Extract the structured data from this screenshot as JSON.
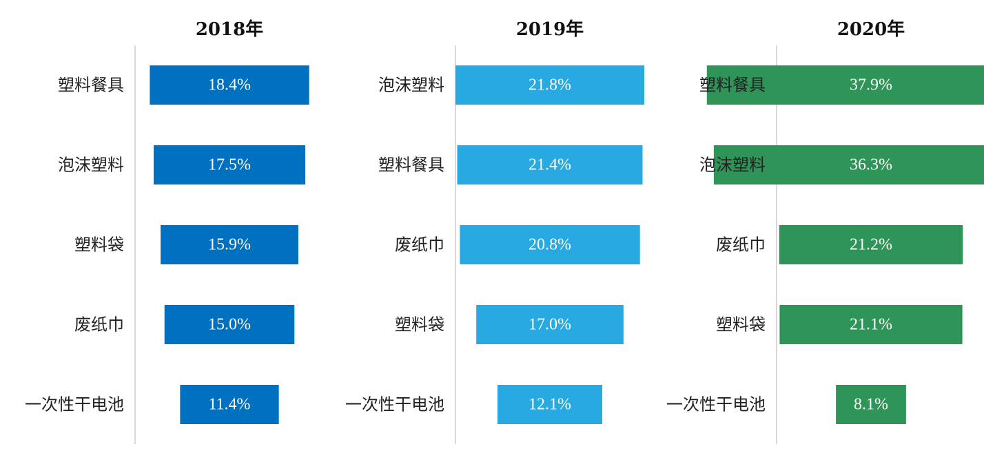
{
  "chart_data": [
    {
      "type": "bar",
      "orientation": "horizontal",
      "title": "2018年",
      "color": "#0070c0",
      "categories": [
        "塑料餐具",
        "泡沫塑料",
        "塑料袋",
        "废纸巾",
        "一次性干电池"
      ],
      "values": [
        18.4,
        17.5,
        15.9,
        15.0,
        11.4
      ],
      "labels": [
        "18.4%",
        "17.5%",
        "15.9%",
        "15.0%",
        "11.4%"
      ]
    },
    {
      "type": "bar",
      "orientation": "horizontal",
      "title": "2019年",
      "color": "#29a9e1",
      "categories": [
        "泡沫塑料",
        "塑料餐具",
        "废纸巾",
        "塑料袋",
        "一次性干电池"
      ],
      "values": [
        21.8,
        21.4,
        20.8,
        17.0,
        12.1
      ],
      "labels": [
        "21.8%",
        "21.4%",
        "20.8%",
        "17.0%",
        "12.1%"
      ]
    },
    {
      "type": "bar",
      "orientation": "horizontal",
      "title": "2020年",
      "color": "#2e9457",
      "categories": [
        "塑料餐具",
        "泡沫塑料",
        "废纸巾",
        "塑料袋",
        "一次性干电池"
      ],
      "values": [
        37.9,
        36.3,
        21.2,
        21.1,
        8.1
      ],
      "labels": [
        "37.9%",
        "36.3%",
        "21.2%",
        "21.1%",
        "8.1%"
      ]
    }
  ]
}
